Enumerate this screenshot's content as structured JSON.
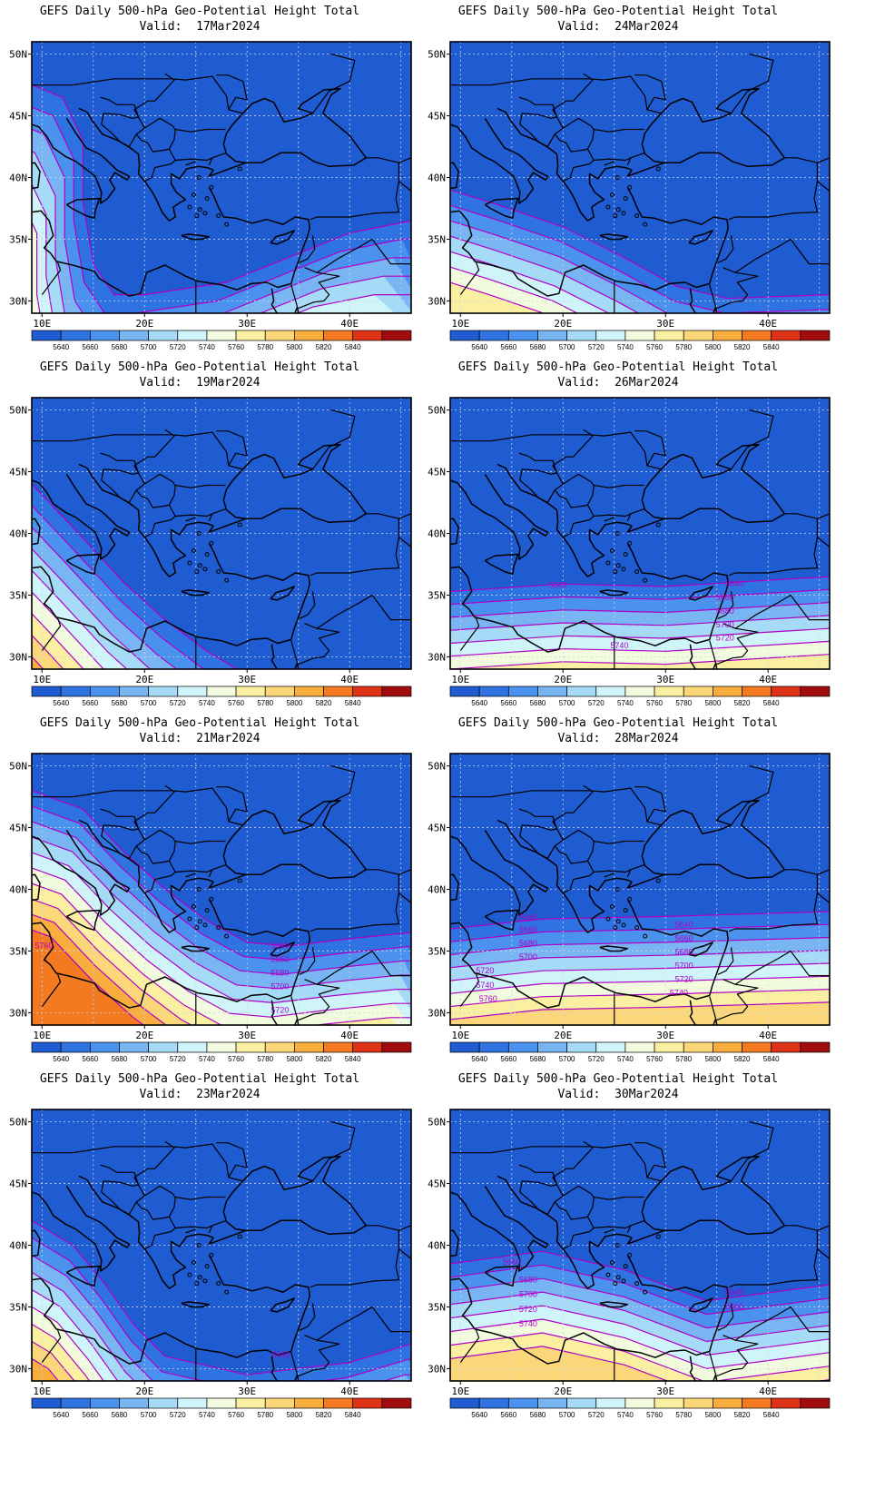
{
  "legend": {
    "colors": [
      "#1f5bd1",
      "#2f73e3",
      "#4b91ee",
      "#79b5f2",
      "#a6dbf7",
      "#cff5fb",
      "#f3fbde",
      "#fbf0a2",
      "#fbd779",
      "#f8ae3f",
      "#f47a22",
      "#df3317",
      "#a10d0d"
    ],
    "labels": [
      "5640",
      "5660",
      "5680",
      "5700",
      "5720",
      "5740",
      "5760",
      "5780",
      "5800",
      "5820",
      "5840"
    ]
  },
  "axes": {
    "lat_labels": [
      "50N",
      "45N",
      "40N",
      "35N",
      "30N"
    ],
    "lon_labels": [
      "10E",
      "20E",
      "30E",
      "40E"
    ]
  },
  "contour_color": "#b000c8",
  "panels": [
    {
      "title": "GEFS Daily 500-hPa Geo-Potential Height Total",
      "valid": "Valid:  17Mar2024",
      "contour_labels": []
    },
    {
      "title": "GEFS Daily 500-hPa Geo-Potential Height Total",
      "valid": "Valid:  24Mar2024",
      "contour_labels": []
    },
    {
      "title": "GEFS Daily 500-hPa Geo-Potential Height Total",
      "valid": "Valid:  19Mar2024",
      "contour_labels": []
    },
    {
      "title": "GEFS Daily 500-hPa Geo-Potential Height Total",
      "valid": "Valid:  26Mar2024",
      "contour_labels": [
        "5640",
        "5640",
        "5660",
        "5680",
        "5700",
        "5720",
        "5740"
      ]
    },
    {
      "title": "GEFS Daily 500-hPa Geo-Potential Height Total",
      "valid": "Valid:  21Mar2024",
      "contour_labels": [
        "5760",
        "5640",
        "5660",
        "5680",
        "5700",
        "5720"
      ]
    },
    {
      "title": "GEFS Daily 500-hPa Geo-Potential Height Total",
      "valid": "Valid:  28Mar2024",
      "contour_labels": [
        "5640",
        "5660",
        "5680",
        "5700",
        "5720",
        "5740",
        "5760",
        "5640",
        "5660",
        "5680",
        "5700",
        "5720",
        "5740"
      ]
    },
    {
      "title": "GEFS Daily 500-hPa Geo-Potential Height Total",
      "valid": "Valid:  23Mar2024",
      "contour_labels": [
        "5640"
      ]
    },
    {
      "title": "GEFS Daily 500-hPa Geo-Potential Height Total",
      "valid": "Valid:  30Mar2024",
      "contour_labels": [
        "5660",
        "5680",
        "5700",
        "5720",
        "5740",
        "5640",
        "5660"
      ]
    }
  ]
}
